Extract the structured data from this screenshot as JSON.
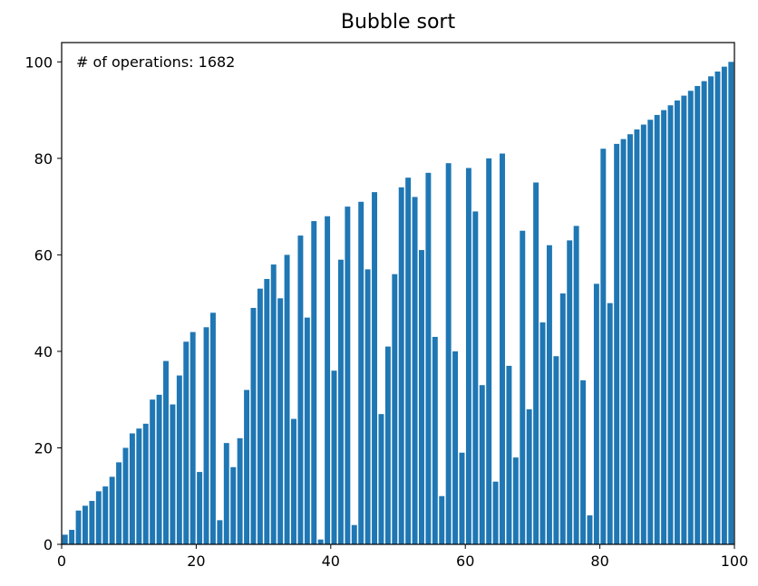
{
  "chart_data": {
    "type": "bar",
    "title": "Bubble sort",
    "annotation": "# of operations: 1682",
    "xlabel": "",
    "ylabel": "",
    "xlim": [
      0,
      100
    ],
    "ylim": [
      0,
      104
    ],
    "x_ticks": [
      0,
      20,
      40,
      60,
      80,
      100
    ],
    "y_ticks": [
      0,
      20,
      40,
      60,
      80,
      100
    ],
    "grid": false,
    "bar_color": "#1f77b4",
    "x": [
      0,
      1,
      2,
      3,
      4,
      5,
      6,
      7,
      8,
      9,
      10,
      11,
      12,
      13,
      14,
      15,
      16,
      17,
      18,
      19,
      20,
      21,
      22,
      23,
      24,
      25,
      26,
      27,
      28,
      29,
      30,
      31,
      32,
      33,
      34,
      35,
      36,
      37,
      38,
      39,
      40,
      41,
      42,
      43,
      44,
      45,
      46,
      47,
      48,
      49,
      50,
      51,
      52,
      53,
      54,
      55,
      56,
      57,
      58,
      59,
      60,
      61,
      62,
      63,
      64,
      65,
      66,
      67,
      68,
      69,
      70,
      71,
      72,
      73,
      74,
      75,
      76,
      77,
      78,
      79,
      80,
      81,
      82,
      83,
      84,
      85,
      86,
      87,
      88,
      89,
      90,
      91,
      92,
      93,
      94,
      95,
      96,
      97,
      98,
      99
    ],
    "values": [
      2,
      3,
      7,
      8,
      9,
      11,
      12,
      14,
      17,
      20,
      23,
      24,
      25,
      30,
      31,
      38,
      29,
      35,
      42,
      44,
      15,
      45,
      48,
      5,
      21,
      16,
      22,
      32,
      49,
      53,
      55,
      58,
      51,
      60,
      26,
      64,
      47,
      67,
      1,
      68,
      36,
      59,
      70,
      4,
      71,
      57,
      73,
      27,
      41,
      56,
      74,
      76,
      72,
      61,
      77,
      43,
      10,
      79,
      40,
      19,
      78,
      69,
      33,
      80,
      13,
      81,
      37,
      18,
      65,
      28,
      75,
      46,
      62,
      39,
      52,
      63,
      66,
      34,
      6,
      54,
      82,
      50,
      83,
      84,
      85,
      86,
      87,
      88,
      89,
      90,
      91,
      92,
      93,
      94,
      95,
      96,
      97,
      98,
      99,
      100
    ]
  }
}
